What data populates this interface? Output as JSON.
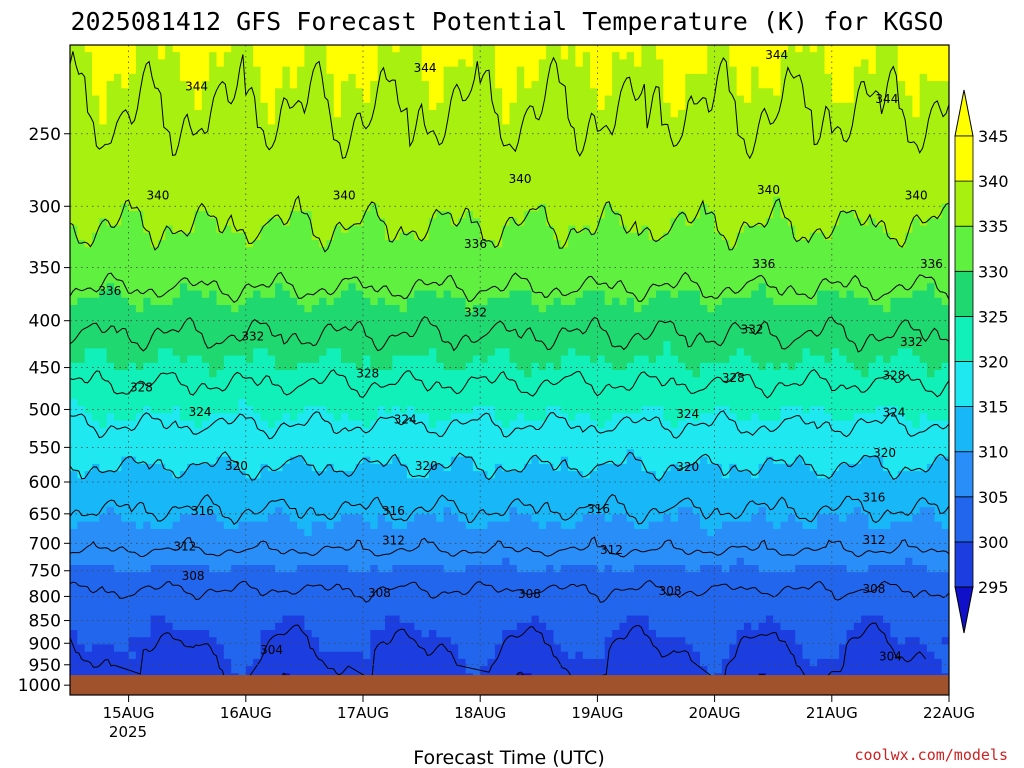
{
  "chart_data": {
    "type": "heatmap",
    "title": "2025081412 GFS Forecast Potential Temperature (K) for KGSO",
    "xlabel": "Forecast Time (UTC)",
    "ylabel": "",
    "x_ticks": [
      "15AUG",
      "16AUG",
      "17AUG",
      "18AUG",
      "19AUG",
      "20AUG",
      "21AUG",
      "22AUG"
    ],
    "x_tick_sublabel": "2025",
    "x_range": [
      "14AUG 12Z",
      "22AUG 00Z"
    ],
    "y_ticks": [
      250,
      300,
      350,
      400,
      450,
      500,
      550,
      600,
      650,
      700,
      750,
      800,
      850,
      900,
      950,
      1000
    ],
    "y_range_hpa": [
      1025,
      200
    ],
    "y_scale": "log-pressure",
    "grid": "dotted",
    "colorbar": {
      "levels": [
        295,
        300,
        305,
        310,
        315,
        320,
        325,
        330,
        335,
        340,
        345
      ],
      "colors": [
        "#1010c8",
        "#1c3ee0",
        "#2266ee",
        "#2a8ef8",
        "#18b8f8",
        "#20e8f0",
        "#10f0b8",
        "#20d870",
        "#60f040",
        "#a8f010",
        "#ffff00",
        "#ffff00"
      ],
      "extend": "both",
      "placement": "right"
    },
    "contour_interval": 4,
    "profile_hpa": [
      200,
      250,
      300,
      350,
      400,
      450,
      500,
      550,
      600,
      650,
      700,
      750,
      800,
      850,
      900,
      950,
      1000
    ],
    "profile_theta_k": [
      345.5,
      343.5,
      341.0,
      337.8,
      333.0,
      329.5,
      325.5,
      321.8,
      318.5,
      315.6,
      312.8,
      309.6,
      307.5,
      306.0,
      305.0,
      304.0,
      303.0
    ],
    "contour_labels": [
      {
        "value": "344",
        "day": 1.08,
        "hpa": 222
      },
      {
        "value": "344",
        "day": 3.03,
        "hpa": 212
      },
      {
        "value": "344",
        "day": 6.03,
        "hpa": 205
      },
      {
        "value": "344",
        "day": 6.97,
        "hpa": 229
      },
      {
        "value": "340",
        "day": 0.75,
        "hpa": 292
      },
      {
        "value": "340",
        "day": 2.34,
        "hpa": 292
      },
      {
        "value": "340",
        "day": 3.84,
        "hpa": 280
      },
      {
        "value": "340",
        "day": 5.96,
        "hpa": 288
      },
      {
        "value": "340",
        "day": 7.22,
        "hpa": 292
      },
      {
        "value": "336",
        "day": 0.34,
        "hpa": 371
      },
      {
        "value": "336",
        "day": 3.46,
        "hpa": 330
      },
      {
        "value": "336",
        "day": 5.92,
        "hpa": 347
      },
      {
        "value": "336",
        "day": 7.35,
        "hpa": 347
      },
      {
        "value": "332",
        "day": 1.56,
        "hpa": 416
      },
      {
        "value": "332",
        "day": 3.46,
        "hpa": 392
      },
      {
        "value": "332",
        "day": 5.82,
        "hpa": 409
      },
      {
        "value": "332",
        "day": 7.18,
        "hpa": 422
      },
      {
        "value": "328",
        "day": 0.61,
        "hpa": 473
      },
      {
        "value": "328",
        "day": 2.54,
        "hpa": 457
      },
      {
        "value": "328",
        "day": 5.66,
        "hpa": 462
      },
      {
        "value": "328",
        "day": 7.03,
        "hpa": 459
      },
      {
        "value": "324",
        "day": 1.11,
        "hpa": 503
      },
      {
        "value": "324",
        "day": 2.86,
        "hpa": 513
      },
      {
        "value": "324",
        "day": 5.27,
        "hpa": 506
      },
      {
        "value": "324",
        "day": 7.03,
        "hpa": 504
      },
      {
        "value": "320",
        "day": 1.42,
        "hpa": 576
      },
      {
        "value": "320",
        "day": 3.04,
        "hpa": 576
      },
      {
        "value": "320",
        "day": 5.27,
        "hpa": 578
      },
      {
        "value": "320",
        "day": 6.95,
        "hpa": 558
      },
      {
        "value": "316",
        "day": 1.13,
        "hpa": 645
      },
      {
        "value": "316",
        "day": 2.76,
        "hpa": 645
      },
      {
        "value": "316",
        "day": 4.51,
        "hpa": 642
      },
      {
        "value": "316",
        "day": 6.86,
        "hpa": 624
      },
      {
        "value": "312",
        "day": 0.98,
        "hpa": 706
      },
      {
        "value": "312",
        "day": 2.76,
        "hpa": 695
      },
      {
        "value": "312",
        "day": 4.62,
        "hpa": 712
      },
      {
        "value": "312",
        "day": 6.86,
        "hpa": 694
      },
      {
        "value": "308",
        "day": 1.05,
        "hpa": 760
      },
      {
        "value": "308",
        "day": 2.64,
        "hpa": 793
      },
      {
        "value": "308",
        "day": 3.92,
        "hpa": 795
      },
      {
        "value": "308",
        "day": 5.12,
        "hpa": 789
      },
      {
        "value": "308",
        "day": 6.86,
        "hpa": 785
      },
      {
        "value": "304",
        "day": 1.72,
        "hpa": 915
      },
      {
        "value": "304",
        "day": 7.0,
        "hpa": 930
      }
    ],
    "surface_color": "#a0522d"
  },
  "credit": "coolwx.com/models",
  "colors": {
    "text": "#000000",
    "credit": "#cc2222",
    "grid": "#444444"
  }
}
